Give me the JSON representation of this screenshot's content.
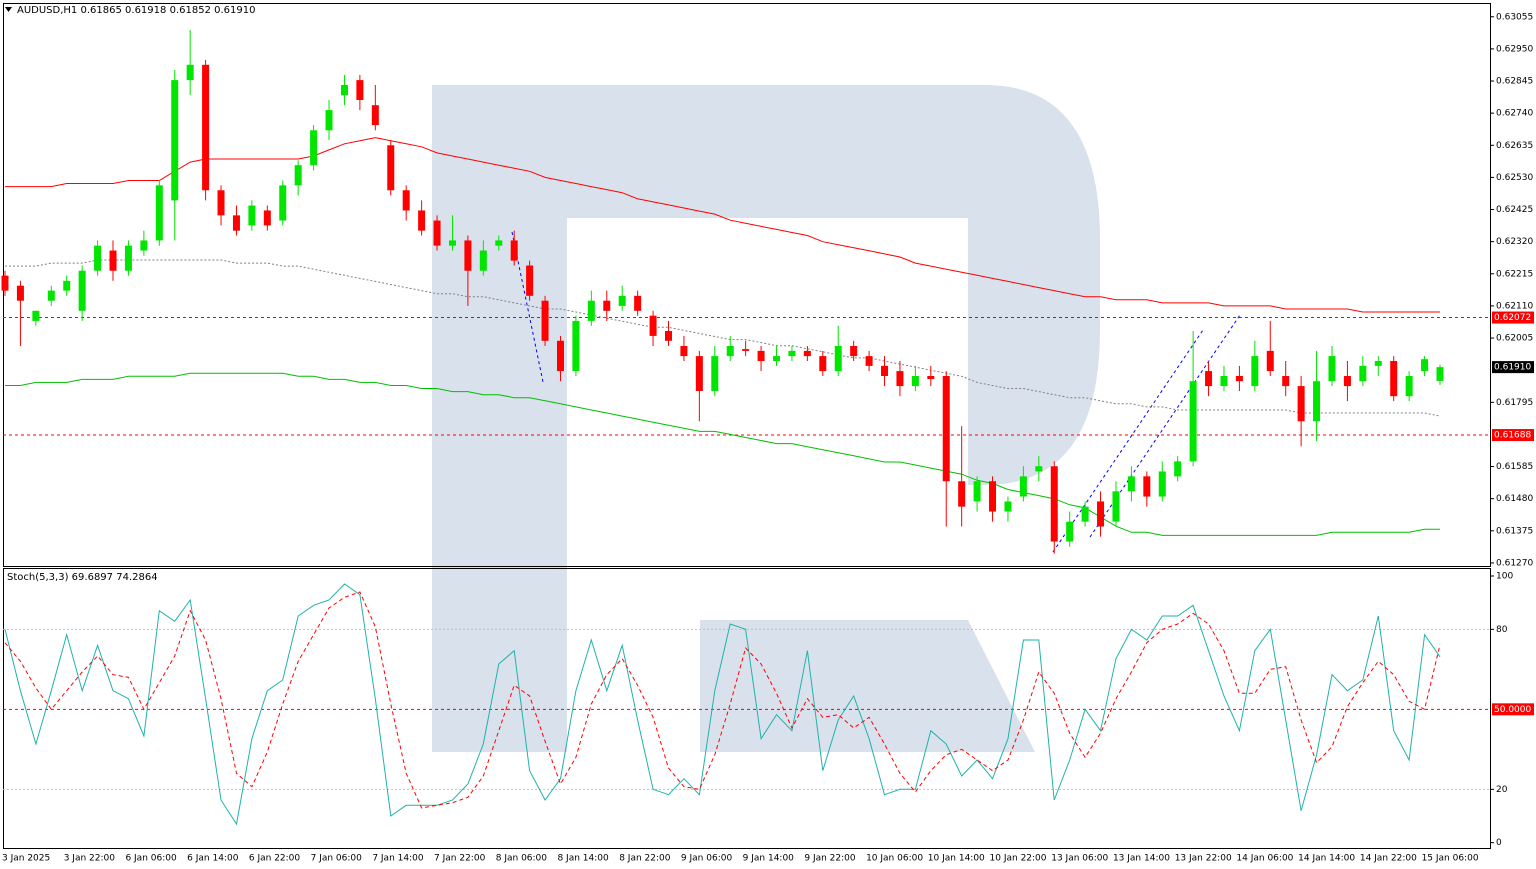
{
  "chart_data": [
    {
      "type": "candlestick",
      "title": "AUDUSD,H1",
      "header_values": [
        0.61865,
        0.61918,
        0.61852,
        {
          "value": 0.6191,
          "label": "0.61910"
        }
      ],
      "open": [
        0.62209,
        0.62176,
        0.62061,
        0.62127,
        0.6216,
        0.62094,
        0.62225,
        0.62291,
        0.62225,
        0.62291,
        0.62324,
        0.62455,
        0.62848,
        0.62898,
        0.62488,
        0.62406,
        0.62373,
        0.62422,
        0.62389,
        0.62504,
        0.6257,
        0.62684,
        0.62799,
        0.62848,
        0.62766,
        0.62635,
        0.62488,
        0.62422,
        0.62389,
        0.62307,
        0.62324,
        0.62225,
        0.62307,
        0.62324,
        0.62242,
        0.62127,
        0.61996,
        0.61897,
        0.62061,
        0.62127,
        0.6211,
        0.62143,
        0.62078,
        0.62028,
        0.61979,
        0.61946,
        0.61832,
        0.61946,
        0.61969,
        0.61963,
        0.6193,
        0.61946,
        0.61963,
        0.61946,
        0.61897,
        0.61979,
        0.61946,
        0.61914,
        0.61897,
        0.61848,
        0.61881,
        0.61881,
        0.61537,
        0.61471,
        0.61537,
        0.61438,
        0.61487,
        0.61569,
        0.61586,
        0.6134,
        0.61405,
        0.61471,
        0.61405,
        0.61504,
        0.61553,
        0.61487,
        0.61553,
        0.61602,
        0.61897,
        0.61848,
        0.61881,
        0.61848,
        0.61963,
        0.61881,
        0.61848,
        0.61733,
        0.61864,
        0.61881,
        0.61864,
        0.61914,
        0.6193,
        0.61815,
        0.61897,
        0.61865
      ],
      "high": [
        0.62225,
        0.62192,
        0.62094,
        0.62176,
        0.62209,
        0.62242,
        0.62324,
        0.62324,
        0.62324,
        0.62356,
        0.6252,
        0.62881,
        0.63012,
        0.62914,
        0.62504,
        0.62438,
        0.62455,
        0.62438,
        0.6252,
        0.62586,
        0.62701,
        0.62783,
        0.62865,
        0.62865,
        0.62832,
        0.62652,
        0.62504,
        0.62455,
        0.62406,
        0.62406,
        0.6234,
        0.62324,
        0.6234,
        0.62356,
        0.62258,
        0.62143,
        0.62012,
        0.62078,
        0.6216,
        0.6216,
        0.62176,
        0.6216,
        0.62094,
        0.62061,
        0.62012,
        0.61963,
        0.61979,
        0.62012,
        0.61996,
        0.61979,
        0.61979,
        0.61979,
        0.61979,
        0.61963,
        0.62045,
        0.61996,
        0.61963,
        0.61946,
        0.6193,
        0.61914,
        0.61914,
        0.61897,
        0.61717,
        0.61553,
        0.61553,
        0.61487,
        0.61586,
        0.61619,
        0.61602,
        0.61438,
        0.61471,
        0.61504,
        0.61537,
        0.61586,
        0.61569,
        0.61602,
        0.61619,
        0.62028,
        0.6193,
        0.61914,
        0.61914,
        0.61996,
        0.62061,
        0.6193,
        0.61881,
        0.61963,
        0.61979,
        0.6193,
        0.61946,
        0.61946,
        0.61946,
        0.61897,
        0.61946,
        0.61918
      ],
      "low": [
        0.62143,
        0.61979,
        0.62045,
        0.6211,
        0.62143,
        0.62061,
        0.62209,
        0.62192,
        0.62209,
        0.62274,
        0.62307,
        0.62324,
        0.62799,
        0.62455,
        0.62373,
        0.6234,
        0.62356,
        0.62356,
        0.62373,
        0.62471,
        0.62553,
        0.62652,
        0.62766,
        0.6275,
        0.62684,
        0.62471,
        0.62389,
        0.6234,
        0.62291,
        0.62291,
        0.6211,
        0.62209,
        0.62291,
        0.62242,
        0.62127,
        0.61979,
        0.61864,
        0.61881,
        0.62045,
        0.62061,
        0.62094,
        0.62078,
        0.61979,
        0.61979,
        0.6193,
        0.61733,
        0.61815,
        0.6193,
        0.61946,
        0.61897,
        0.61914,
        0.6193,
        0.6193,
        0.61881,
        0.61881,
        0.6193,
        0.61897,
        0.61848,
        0.61815,
        0.61832,
        0.61848,
        0.61389,
        0.61389,
        0.61438,
        0.61405,
        0.61405,
        0.61471,
        0.61537,
        0.613,
        0.61323,
        0.61389,
        0.61356,
        0.61389,
        0.61471,
        0.61454,
        0.61471,
        0.61537,
        0.61586,
        0.61815,
        0.61832,
        0.61832,
        0.61832,
        0.61881,
        0.61815,
        0.61651,
        0.61668,
        0.61848,
        0.61799,
        0.61848,
        0.61881,
        0.61799,
        0.61799,
        0.61881,
        0.61852
      ],
      "close": [
        0.6216,
        0.62127,
        0.62094,
        0.6216,
        0.62192,
        0.62225,
        0.62307,
        0.62225,
        0.62307,
        0.62324,
        0.62504,
        0.62848,
        0.62898,
        0.62488,
        0.62406,
        0.62356,
        0.62438,
        0.62373,
        0.62504,
        0.6257,
        0.62684,
        0.6275,
        0.62832,
        0.62783,
        0.62701,
        0.62488,
        0.62422,
        0.62356,
        0.62307,
        0.62324,
        0.62225,
        0.62291,
        0.62324,
        0.62258,
        0.62143,
        0.61996,
        0.61897,
        0.62061,
        0.62127,
        0.62094,
        0.62143,
        0.62094,
        0.62012,
        0.61996,
        0.61946,
        0.61832,
        0.61946,
        0.61979,
        0.61963,
        0.6193,
        0.61946,
        0.61963,
        0.61946,
        0.61897,
        0.61979,
        0.61946,
        0.61914,
        0.61881,
        0.61848,
        0.61881,
        0.61871,
        0.61537,
        0.61454,
        0.61537,
        0.61438,
        0.61471,
        0.61553,
        0.61586,
        0.6134,
        0.61405,
        0.61454,
        0.61389,
        0.61504,
        0.61553,
        0.61487,
        0.61569,
        0.61602,
        0.61864,
        0.61848,
        0.61881,
        0.61864,
        0.61946,
        0.61897,
        0.61848,
        0.61733,
        0.61864,
        0.61946,
        0.61848,
        0.61914,
        0.6193,
        0.61815,
        0.61881,
        0.61936,
        0.6191
      ],
      "up_color": "#00e600",
      "down_color": "#ff0000",
      "series": [
        {
          "color": "#ff0000",
          "style": "solid",
          "values": [
            0.625,
            0.625,
            0.625,
            0.625,
            0.6251,
            0.6251,
            0.6251,
            0.6251,
            0.6252,
            0.6252,
            0.6252,
            0.6255,
            0.6258,
            0.6259,
            0.6259,
            0.6259,
            0.6259,
            0.6259,
            0.6259,
            0.6259,
            0.626,
            0.6262,
            0.6264,
            0.6265,
            0.6266,
            0.6265,
            0.6264,
            0.6263,
            0.6261,
            0.626,
            0.6259,
            0.6258,
            0.6257,
            0.6256,
            0.6255,
            0.6253,
            0.6252,
            0.6251,
            0.625,
            0.6249,
            0.6248,
            0.6246,
            0.6245,
            0.6244,
            0.6243,
            0.6242,
            0.6241,
            0.6239,
            0.6238,
            0.6237,
            0.6236,
            0.6235,
            0.6234,
            0.6232,
            0.6231,
            0.623,
            0.6229,
            0.6228,
            0.6227,
            0.6225,
            0.6224,
            0.6223,
            0.6222,
            0.6221,
            0.622,
            0.6219,
            0.6218,
            0.6217,
            0.6216,
            0.6215,
            0.6214,
            0.6214,
            0.6213,
            0.6213,
            0.6213,
            0.6212,
            0.6212,
            0.6212,
            0.6212,
            0.6211,
            0.6211,
            0.6211,
            0.6211,
            0.621,
            0.621,
            0.621,
            0.621,
            0.621,
            0.6209,
            0.6209,
            0.6209,
            0.6209,
            0.6209,
            0.6209
          ]
        },
        {
          "color": "#808080",
          "style": "dotted",
          "values": [
            0.6224,
            0.6224,
            0.6224,
            0.6225,
            0.6225,
            0.6225,
            0.6226,
            0.6226,
            0.6226,
            0.6226,
            0.6226,
            0.6226,
            0.6226,
            0.6226,
            0.6226,
            0.6225,
            0.6225,
            0.6225,
            0.6224,
            0.6224,
            0.6223,
            0.6222,
            0.6221,
            0.622,
            0.6219,
            0.6218,
            0.6217,
            0.6216,
            0.6215,
            0.6215,
            0.6214,
            0.6214,
            0.6213,
            0.6212,
            0.6211,
            0.621,
            0.621,
            0.6209,
            0.6208,
            0.6207,
            0.6206,
            0.6205,
            0.6204,
            0.6204,
            0.6203,
            0.6202,
            0.6201,
            0.62,
            0.62,
            0.6199,
            0.6198,
            0.6198,
            0.6197,
            0.6196,
            0.6195,
            0.6194,
            0.6194,
            0.6193,
            0.6192,
            0.6191,
            0.619,
            0.6189,
            0.6188,
            0.6186,
            0.6185,
            0.6184,
            0.6184,
            0.6183,
            0.6182,
            0.6181,
            0.6181,
            0.618,
            0.6179,
            0.6179,
            0.6178,
            0.6178,
            0.6177,
            0.6177,
            0.6177,
            0.6177,
            0.6177,
            0.6177,
            0.6177,
            0.6177,
            0.6176,
            0.6176,
            0.6176,
            0.6176,
            0.6176,
            0.6176,
            0.6176,
            0.6176,
            0.6176,
            0.6175
          ]
        },
        {
          "color": "#00c000",
          "style": "solid",
          "values": [
            0.6185,
            0.6185,
            0.6186,
            0.6186,
            0.6186,
            0.6187,
            0.6187,
            0.6187,
            0.6188,
            0.6188,
            0.6188,
            0.6188,
            0.6189,
            0.6189,
            0.6189,
            0.6189,
            0.6189,
            0.6189,
            0.6189,
            0.6188,
            0.6188,
            0.6187,
            0.6187,
            0.6186,
            0.6186,
            0.6185,
            0.6185,
            0.6184,
            0.6184,
            0.6183,
            0.6183,
            0.6182,
            0.6182,
            0.6181,
            0.6181,
            0.618,
            0.6179,
            0.6178,
            0.6177,
            0.6176,
            0.6175,
            0.6174,
            0.6173,
            0.6172,
            0.6171,
            0.617,
            0.617,
            0.6169,
            0.6168,
            0.6167,
            0.6166,
            0.6166,
            0.6165,
            0.6164,
            0.6163,
            0.6162,
            0.6161,
            0.616,
            0.616,
            0.6159,
            0.6158,
            0.6157,
            0.6156,
            0.6154,
            0.6153,
            0.6151,
            0.615,
            0.6149,
            0.6148,
            0.6146,
            0.6145,
            0.6142,
            0.6139,
            0.6137,
            0.6137,
            0.6136,
            0.6136,
            0.6136,
            0.6136,
            0.6136,
            0.6136,
            0.6136,
            0.6136,
            0.6136,
            0.6136,
            0.6136,
            0.6137,
            0.6137,
            0.6137,
            0.6137,
            0.6137,
            0.6137,
            0.6138,
            0.6138
          ]
        }
      ],
      "levels": [
        {
          "value": 0.62072,
          "color": "#ff0000"
        },
        {
          "value": 0.61688,
          "color": "#ff0000"
        }
      ],
      "current_price": {
        "value": 0.6191,
        "label": "0.61910"
      },
      "ylim": [
        0.6126,
        0.631
      ],
      "yticks": [
        0.63055,
        {
          "value": 0.6295,
          "label": "0.62950"
        },
        0.62845,
        {
          "value": 0.6274,
          "label": "0.62740"
        },
        0.62635,
        {
          "value": 0.6253,
          "label": "0.62530"
        },
        0.62425,
        {
          "value": 0.6232,
          "label": "0.62320"
        },
        0.62215,
        {
          "value": 0.6211,
          "label": "0.62110"
        },
        0.62005,
        0.61795,
        0.61585,
        {
          "value": 0.6148,
          "label": "0.61480"
        },
        0.61375,
        {
          "value": 0.6127,
          "label": "0.61270"
        }
      ],
      "grid": false
    },
    {
      "type": "line",
      "title": "Stoch(5,3,3)",
      "categories": [
        "3 Jan 2025",
        null,
        null,
        null,
        "3 Jan 22:00",
        null,
        null,
        null,
        "6 Jan 06:00",
        null,
        null,
        null,
        "6 Jan 14:00",
        null,
        null,
        null,
        "6 Jan 22:00",
        null,
        null,
        null,
        "7 Jan 06:00",
        null,
        null,
        null,
        "7 Jan 14:00",
        null,
        null,
        null,
        "7 Jan 22:00",
        null,
        null,
        null,
        "8 Jan 06:00",
        null,
        null,
        null,
        "8 Jan 14:00",
        null,
        null,
        null,
        "8 Jan 22:00",
        null,
        null,
        null,
        "9 Jan 06:00",
        null,
        null,
        null,
        "9 Jan 14:00",
        null,
        null,
        null,
        "9 Jan 22:00",
        null,
        null,
        null,
        "10 Jan 06:00",
        null,
        null,
        null,
        "10 Jan 14:00",
        null,
        null,
        null,
        "10 Jan 22:00",
        null,
        null,
        null,
        "13 Jan 06:00",
        null,
        null,
        null,
        "13 Jan 14:00",
        null,
        null,
        null,
        "13 Jan 22:00",
        null,
        null,
        null,
        "14 Jan 06:00",
        null,
        null,
        null,
        "14 Jan 14:00",
        null,
        null,
        null,
        "14 Jan 22:00",
        null,
        null,
        null,
        "15 Jan 06:00",
        null
      ],
      "series": [
        {
          "color": "#20b2aa",
          "style": "solid",
          "values": [
            80,
            57,
            37,
            57,
            78,
            57,
            74,
            57,
            54,
            40,
            87,
            83,
            91,
            54,
            16,
            7,
            39,
            57,
            61,
            85,
            89,
            91,
            97,
            93,
            54,
            10,
            14,
            14,
            14,
            16,
            22,
            37,
            67,
            72,
            27,
            16,
            24,
            57,
            76,
            57,
            74,
            46,
            20,
            18,
            24,
            18,
            57,
            82,
            80,
            39,
            48,
            42,
            72,
            27,
            46,
            55,
            39,
            18,
            20,
            20,
            42,
            37,
            25,
            31,
            24,
            39,
            76,
            76,
            16,
            31,
            50,
            42,
            69,
            80,
            76,
            85,
            85,
            89,
            72,
            55,
            42,
            72,
            80,
            46,
            12,
            33,
            63,
            57,
            61,
            85,
            42,
            31,
            78,
            69.6897
          ]
        },
        {
          "color": "#ff0000",
          "style": "dashed",
          "values": [
            75,
            68,
            58,
            50,
            57,
            64,
            70,
            63,
            62,
            50,
            60,
            70,
            87,
            76,
            54,
            26,
            21,
            34,
            52,
            68,
            78,
            88,
            92,
            94,
            81,
            52,
            26,
            13,
            14,
            15,
            17,
            25,
            42,
            59,
            55,
            38,
            22,
            32,
            52,
            63,
            69,
            59,
            47,
            28,
            21,
            20,
            33,
            52,
            73,
            67,
            56,
            43,
            54,
            47,
            48,
            43,
            47,
            37,
            26,
            19,
            27,
            33,
            35,
            31,
            27,
            31,
            46,
            64,
            56,
            41,
            32,
            41,
            54,
            64,
            75,
            80,
            82,
            86,
            82,
            72,
            56,
            56,
            65,
            66,
            46,
            30,
            36,
            51,
            60,
            68,
            63,
            53,
            50,
            74.2864
          ]
        }
      ],
      "levels": [
        {
          "value": 50,
          "label": "50.0000",
          "color": "#ff0000"
        }
      ],
      "ylim": [
        -2,
        103
      ],
      "yticks": [
        0,
        20,
        80,
        100
      ],
      "grid": true
    }
  ]
}
